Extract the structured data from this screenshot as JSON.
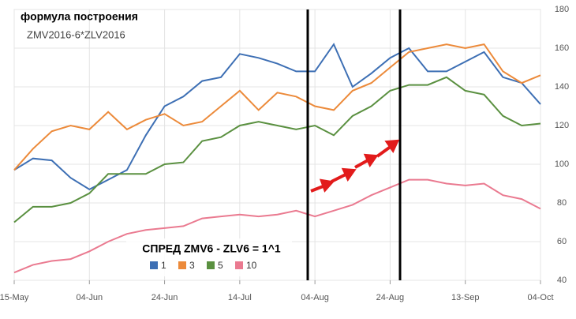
{
  "chart_data": {
    "type": "line",
    "title": "формула построения",
    "subtitle": "ZMV2016-6*ZLV2016",
    "legend_title": "СПРЕД ZMV6 - ZLV6 = 1^1",
    "categories": [
      "15-May",
      null,
      null,
      null,
      "04-Jun",
      null,
      null,
      null,
      "24-Jun",
      null,
      null,
      null,
      "14-Jul",
      null,
      null,
      null,
      "04-Aug",
      null,
      null,
      null,
      "24-Aug",
      null,
      null,
      null,
      "13-Sep",
      null,
      null,
      null,
      "04-Oct"
    ],
    "series": [
      {
        "name": "1",
        "color": "#3d6fb4",
        "values": [
          97,
          103,
          102,
          93,
          87,
          92,
          97,
          115,
          130,
          135,
          143,
          145,
          157,
          155,
          152,
          148,
          148,
          162,
          140,
          147,
          155,
          160,
          148,
          148,
          153,
          158,
          145,
          142,
          131
        ]
      },
      {
        "name": "3",
        "color": "#ec8a3a",
        "values": [
          97,
          108,
          117,
          120,
          118,
          127,
          118,
          123,
          126,
          120,
          122,
          130,
          138,
          128,
          137,
          135,
          130,
          128,
          138,
          142,
          150,
          158,
          160,
          162,
          160,
          162,
          148,
          142,
          146
        ]
      },
      {
        "name": "5",
        "color": "#5a9040",
        "values": [
          70,
          78,
          78,
          80,
          85,
          95,
          95,
          95,
          100,
          101,
          112,
          114,
          120,
          122,
          120,
          118,
          120,
          115,
          125,
          130,
          138,
          141,
          141,
          145,
          138,
          136,
          125,
          120,
          121
        ]
      },
      {
        "name": "10",
        "color": "#ea7a90",
        "values": [
          44,
          48,
          50,
          51,
          55,
          60,
          64,
          66,
          67,
          68,
          72,
          73,
          74,
          73,
          74,
          76,
          73,
          76,
          79,
          84,
          88,
          92,
          92,
          90,
          89,
          90,
          84,
          82,
          77
        ]
      }
    ],
    "ylim": [
      40,
      180
    ],
    "yticks": [
      40,
      60,
      80,
      100,
      120,
      140,
      160,
      180
    ],
    "grid": true
  }
}
